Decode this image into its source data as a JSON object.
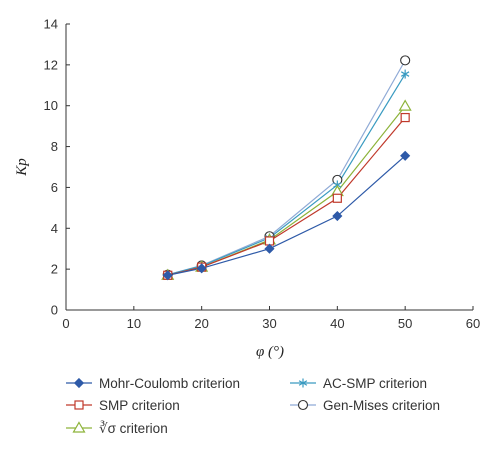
{
  "chart_data": {
    "type": "line",
    "xlabel": "φ (°)",
    "ylabel": "Kp",
    "xlim": [
      0,
      60
    ],
    "ylim": [
      0,
      14
    ],
    "xticks": [
      "0",
      "10",
      "20",
      "30",
      "40",
      "50",
      "60"
    ],
    "yticks": [
      "0",
      "2",
      "4",
      "6",
      "8",
      "10",
      "12",
      "14"
    ],
    "grid": false,
    "legend_position": "bottom",
    "x": [
      15,
      20,
      30,
      40,
      50
    ],
    "series": [
      {
        "name": "Mohr-Coulomb criterion",
        "values": [
          1.7,
          2.04,
          3.0,
          4.6,
          7.55
        ],
        "color": "#2e5aa8",
        "marker": "diamond"
      },
      {
        "name": "SMP criterion",
        "values": [
          1.7,
          2.1,
          3.38,
          5.47,
          9.42
        ],
        "color": "#c0392b",
        "marker": "square"
      },
      {
        "name": "∛σ criterion",
        "values": [
          1.7,
          2.1,
          3.43,
          5.8,
          9.98
        ],
        "color": "#8db33a",
        "marker": "triangle"
      },
      {
        "name": "AC-SMP criterion",
        "values": [
          1.72,
          2.16,
          3.53,
          6.12,
          11.55
        ],
        "color": "#3a9bc1",
        "marker": "asterisk"
      },
      {
        "name": "Gen-Mises criterion",
        "values": [
          1.73,
          2.18,
          3.61,
          6.37,
          12.22
        ],
        "color": "#8faad6",
        "marker": "circle"
      }
    ]
  }
}
